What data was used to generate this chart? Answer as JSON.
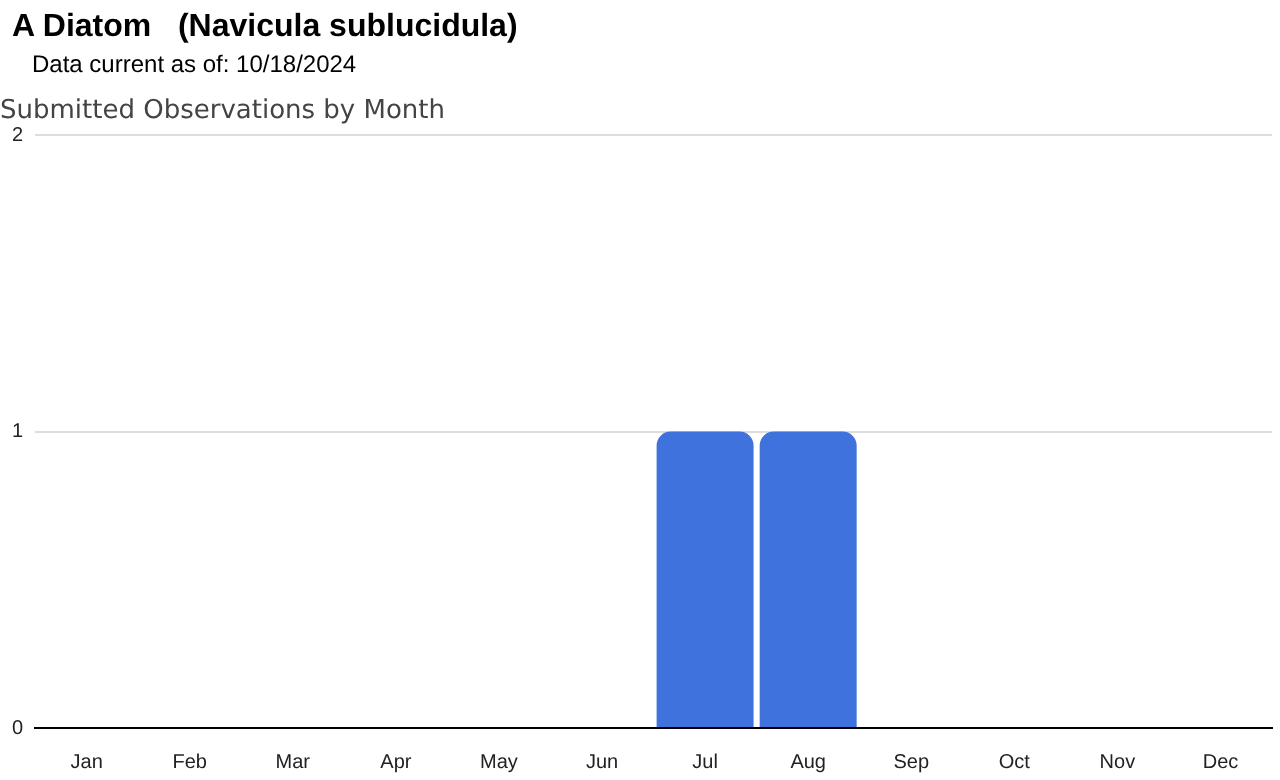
{
  "chart_data": {
    "type": "bar",
    "title": "A Diatom   (Navicula sublucidula)",
    "subtitle": "Data current as of: 10/18/2024",
    "ylabel": "Submitted Observations by Month",
    "categories": [
      "Jan",
      "Feb",
      "Mar",
      "Apr",
      "May",
      "Jun",
      "Jul",
      "Aug",
      "Sep",
      "Oct",
      "Nov",
      "Dec"
    ],
    "values": [
      0,
      0,
      0,
      0,
      0,
      0,
      1,
      1,
      0,
      0,
      0,
      0
    ],
    "color": "#3f72dc",
    "ylim": [
      0,
      2
    ],
    "yticks": [
      0,
      1,
      2
    ],
    "grid": "y"
  }
}
